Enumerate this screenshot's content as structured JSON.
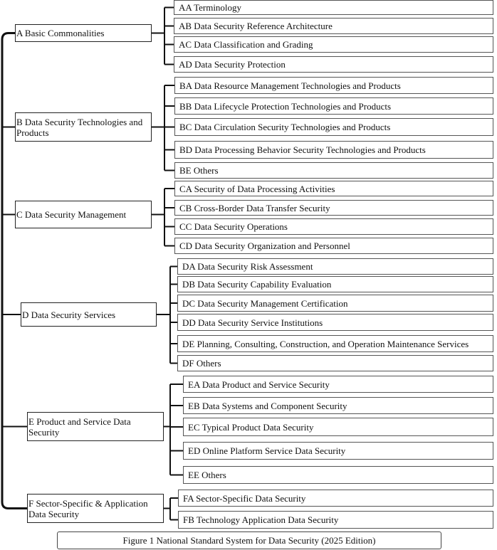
{
  "caption": "Figure 1 National Standard System for Data Security (2025 Edition)",
  "categories": [
    {
      "label": "A Basic Commonalities",
      "children": [
        "AA Terminology",
        "AB Data Security Reference Architecture",
        "AC Data Classification and Grading",
        "AD Data Security Protection"
      ]
    },
    {
      "label": "B Data Security Technologies and Products",
      "children": [
        "BA Data Resource Management Technologies and Products",
        "BB Data Lifecycle Protection Technologies and Products",
        "BC Data Circulation Security Technologies and Products",
        "BD Data Processing Behavior Security Technologies and Products",
        "BE Others"
      ]
    },
    {
      "label": "C Data Security Management",
      "children": [
        "CA Security of Data Processing Activities",
        "CB Cross-Border Data Transfer Security",
        "CC Data Security Operations",
        "CD Data Security Organization and Personnel"
      ]
    },
    {
      "label": "D Data Security Services",
      "children": [
        "DA Data Security Risk Assessment",
        "DB Data Security Capability Evaluation",
        "DC Data Security Management Certification",
        "DD Data Security Service Institutions",
        "DE Planning, Consulting, Construction, and Operation Maintenance Services",
        "DF Others"
      ]
    },
    {
      "label": "E Product and Service Data Security",
      "children": [
        "EA Data Product and Service Security",
        "EB Data Systems and Component Security",
        "EC Typical Product Data Security",
        "ED Online Platform Service Data Security",
        "EE Others"
      ]
    },
    {
      "label": "F Sector-Specific & Application Data Security",
      "children": [
        "FA Sector-Specific Data Security",
        "FB Technology Application Data Security"
      ]
    }
  ]
}
